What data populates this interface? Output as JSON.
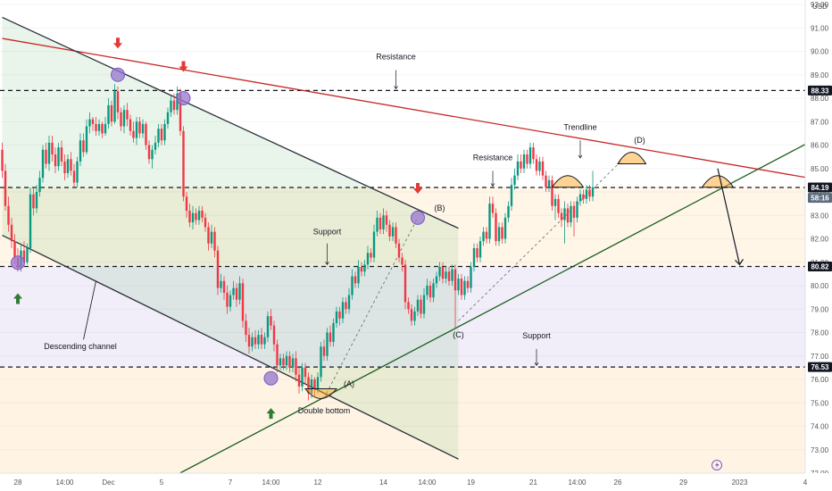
{
  "chart_data": {
    "type": "candlestick",
    "currency": "USD",
    "y_axis": {
      "min": 72.0,
      "max": 92.0,
      "ticks": [
        "92.00",
        "91.00",
        "90.00",
        "89.00",
        "88.00",
        "87.00",
        "86.00",
        "85.00",
        "84.00",
        "83.00",
        "82.00",
        "81.00",
        "80.00",
        "79.00",
        "78.00",
        "77.00",
        "76.00",
        "75.00",
        "74.00",
        "73.00",
        "72.00"
      ]
    },
    "x_axis": {
      "labels": [
        {
          "text": "28",
          "t": 5
        },
        {
          "text": "14:00",
          "t": 20
        },
        {
          "text": "Dec",
          "t": 34
        },
        {
          "text": "5",
          "t": 51
        },
        {
          "text": "7",
          "t": 73
        },
        {
          "text": "14:00",
          "t": 86
        },
        {
          "text": "12",
          "t": 101
        },
        {
          "text": "14",
          "t": 122
        },
        {
          "text": "14:00",
          "t": 136
        },
        {
          "text": "19",
          "t": 150
        },
        {
          "text": "21",
          "t": 170
        },
        {
          "text": "14:00",
          "t": 184
        },
        {
          "text": "26",
          "t": 197
        },
        {
          "text": "29",
          "t": 218
        },
        {
          "text": "2023",
          "t": 236
        },
        {
          "text": "4",
          "t": 257
        }
      ]
    },
    "price_tags": [
      {
        "text": "88.33",
        "value": 88.33,
        "color": "#131722"
      },
      {
        "text": "84.19",
        "value": 84.19,
        "color": "#131722"
      },
      {
        "text": "58:16",
        "value": 83.75,
        "color": "#5d6b7e"
      },
      {
        "text": "80.82",
        "value": 80.82,
        "color": "#131722"
      },
      {
        "text": "76.53",
        "value": 76.53,
        "color": "#131722"
      }
    ],
    "levels": [
      {
        "name": "Resistance",
        "value": 88.33
      },
      {
        "name": "Resistance",
        "value": 84.19
      },
      {
        "name": "Support",
        "value": 80.82
      },
      {
        "name": "Support",
        "value": 76.53
      }
    ],
    "lines": [
      {
        "name": "Trendline",
        "from": [
          0,
          90.55
        ],
        "to": [
          258,
          84.6
        ],
        "color": "#c62828"
      },
      {
        "name": "channel-upper",
        "from": [
          0,
          91.45
        ],
        "to": [
          146,
          82.45
        ],
        "color": "#2a2e39"
      },
      {
        "name": "channel-lower",
        "from": [
          0,
          82.15
        ],
        "to": [
          146,
          72.6
        ],
        "color": "#2a2e39"
      },
      {
        "name": "rising-support",
        "from": [
          54,
          71.8
        ],
        "to": [
          258,
          86.1
        ],
        "color": "#1b5e20"
      }
    ],
    "annotations": [
      {
        "text": "Resistance",
        "t": 126,
        "v": 89.65
      },
      {
        "text": "Trendline",
        "t": 185,
        "v": 86.65
      },
      {
        "text": "Resistance",
        "t": 157,
        "v": 85.35
      },
      {
        "text": "Support",
        "t": 104,
        "v": 82.2
      },
      {
        "text": "Support",
        "t": 171,
        "v": 77.75
      },
      {
        "text": "Descending channel",
        "t": 25,
        "v": 77.3
      },
      {
        "text": "Double bottom",
        "t": 103,
        "v": 74.55
      },
      {
        "text": "(A)",
        "t": 111,
        "v": 75.7
      },
      {
        "text": "(B)",
        "t": 140,
        "v": 83.2
      },
      {
        "text": "(C)",
        "t": 146,
        "v": 77.8
      },
      {
        "text": "(D)",
        "t": 204,
        "v": 86.1
      }
    ],
    "candles": [
      [
        85.8,
        84.9,
        86.1,
        84.6
      ],
      [
        84.9,
        83.4,
        85.2,
        83.2
      ],
      [
        83.4,
        82.6,
        83.8,
        82.3
      ],
      [
        82.6,
        81.9,
        82.9,
        81.6
      ],
      [
        81.9,
        81.2,
        82.2,
        80.9
      ],
      [
        81.2,
        80.8,
        81.6,
        80.6
      ],
      [
        80.8,
        81.5,
        81.8,
        80.6
      ],
      [
        81.5,
        81.0,
        81.9,
        80.8
      ],
      [
        81.0,
        81.6,
        81.8,
        80.9
      ],
      [
        81.6,
        83.9,
        84.2,
        81.4
      ],
      [
        83.9,
        83.3,
        84.2,
        83.0
      ],
      [
        83.3,
        84.0,
        84.3,
        83.1
      ],
      [
        84.0,
        84.6,
        84.9,
        83.8
      ],
      [
        84.6,
        85.8,
        86.0,
        84.4
      ],
      [
        85.8,
        85.2,
        86.1,
        85.0
      ],
      [
        85.2,
        86.1,
        86.4,
        84.9
      ],
      [
        86.1,
        85.6,
        86.4,
        85.3
      ],
      [
        85.6,
        85.1,
        85.9,
        84.8
      ],
      [
        85.1,
        85.9,
        86.1,
        84.9
      ],
      [
        85.9,
        85.3,
        86.2,
        85.1
      ],
      [
        85.3,
        84.8,
        85.6,
        84.5
      ],
      [
        84.8,
        85.4,
        85.6,
        84.6
      ],
      [
        85.4,
        84.9,
        85.7,
        84.7
      ],
      [
        84.9,
        84.4,
        85.2,
        84.2
      ],
      [
        84.4,
        85.3,
        85.5,
        84.2
      ],
      [
        85.3,
        86.2,
        86.5,
        85.1
      ],
      [
        86.2,
        85.7,
        86.5,
        85.5
      ],
      [
        85.7,
        86.8,
        87.1,
        85.6
      ],
      [
        86.8,
        87.1,
        87.4,
        86.5
      ],
      [
        87.1,
        86.9,
        87.2,
        86.6
      ],
      [
        86.9,
        86.6,
        87.2,
        86.4
      ],
      [
        86.6,
        86.9,
        87.1,
        86.4
      ],
      [
        86.9,
        86.5,
        87.0,
        86.3
      ],
      [
        86.5,
        86.9,
        87.2,
        86.4
      ],
      [
        86.9,
        87.7,
        88.0,
        86.7
      ],
      [
        87.7,
        87.0,
        87.9,
        86.8
      ],
      [
        87.0,
        88.3,
        88.6,
        86.9
      ],
      [
        88.3,
        87.4,
        88.5,
        87.1
      ],
      [
        87.4,
        86.8,
        87.6,
        86.6
      ],
      [
        86.8,
        87.5,
        87.7,
        86.5
      ],
      [
        87.5,
        87.1,
        87.8,
        86.8
      ],
      [
        87.1,
        86.6,
        87.3,
        86.4
      ],
      [
        86.6,
        86.3,
        87.0,
        86.1
      ],
      [
        86.3,
        87.0,
        87.2,
        86.0
      ],
      [
        87.0,
        86.5,
        87.2,
        86.3
      ],
      [
        86.5,
        86.9,
        87.1,
        86.3
      ],
      [
        86.9,
        86.0,
        87.0,
        85.8
      ],
      [
        86.0,
        85.4,
        86.2,
        85.2
      ],
      [
        85.4,
        85.8,
        86.0,
        85.0
      ],
      [
        85.8,
        86.1,
        86.4,
        85.6
      ],
      [
        86.1,
        86.7,
        86.9,
        85.9
      ],
      [
        86.7,
        86.2,
        86.9,
        86.0
      ],
      [
        86.2,
        86.9,
        87.1,
        86.0
      ],
      [
        86.9,
        87.4,
        87.6,
        86.7
      ],
      [
        87.4,
        87.9,
        88.1,
        87.2
      ],
      [
        87.9,
        87.5,
        88.2,
        87.3
      ],
      [
        87.5,
        88.2,
        88.5,
        87.3
      ],
      [
        88.2,
        86.6,
        88.4,
        86.4
      ],
      [
        86.6,
        83.8,
        86.8,
        83.6
      ],
      [
        83.8,
        83.2,
        84.0,
        82.9
      ],
      [
        83.2,
        82.7,
        83.5,
        82.5
      ],
      [
        82.7,
        83.1,
        83.4,
        82.4
      ],
      [
        83.1,
        82.8,
        83.3,
        82.6
      ],
      [
        82.8,
        83.2,
        83.4,
        82.6
      ],
      [
        83.2,
        82.9,
        83.4,
        82.7
      ],
      [
        82.9,
        82.5,
        83.1,
        82.3
      ],
      [
        82.5,
        81.8,
        82.7,
        81.5
      ],
      [
        81.8,
        82.3,
        82.6,
        81.6
      ],
      [
        82.3,
        81.5,
        82.5,
        81.2
      ],
      [
        81.5,
        79.9,
        81.7,
        79.6
      ],
      [
        79.9,
        80.2,
        80.5,
        79.7
      ],
      [
        80.2,
        79.7,
        80.4,
        79.4
      ],
      [
        79.7,
        79.1,
        80.0,
        78.8
      ],
      [
        79.1,
        79.6,
        79.8,
        78.9
      ],
      [
        79.6,
        79.9,
        80.2,
        79.4
      ],
      [
        79.9,
        79.4,
        80.1,
        79.1
      ],
      [
        79.4,
        80.1,
        80.4,
        79.2
      ],
      [
        80.1,
        78.5,
        80.3,
        78.2
      ],
      [
        78.5,
        77.9,
        78.8,
        77.6
      ],
      [
        77.9,
        77.4,
        78.2,
        77.1
      ],
      [
        77.4,
        77.8,
        78.0,
        77.2
      ],
      [
        77.8,
        77.5,
        78.1,
        77.3
      ],
      [
        77.5,
        77.9,
        78.1,
        77.3
      ],
      [
        77.9,
        77.5,
        78.2,
        77.3
      ],
      [
        77.5,
        77.8,
        78.0,
        77.3
      ],
      [
        77.8,
        78.7,
        78.9,
        77.6
      ],
      [
        78.7,
        78.3,
        79.0,
        78.1
      ],
      [
        78.3,
        77.5,
        78.5,
        77.2
      ],
      [
        77.5,
        76.6,
        77.7,
        76.3
      ],
      [
        76.6,
        76.9,
        77.1,
        76.4
      ],
      [
        76.9,
        76.6,
        77.1,
        76.4
      ],
      [
        76.6,
        77.0,
        77.2,
        76.4
      ],
      [
        77.0,
        76.5,
        77.2,
        76.3
      ],
      [
        76.5,
        76.9,
        77.1,
        76.3
      ],
      [
        76.9,
        76.2,
        77.2,
        75.9
      ],
      [
        76.2,
        75.7,
        76.5,
        75.4
      ],
      [
        75.7,
        76.5,
        76.7,
        75.5
      ],
      [
        76.5,
        76.1,
        76.7,
        75.8
      ],
      [
        76.1,
        75.4,
        76.3,
        75.1
      ],
      [
        75.4,
        76.0,
        76.2,
        75.2
      ],
      [
        76.0,
        75.6,
        76.1,
        75.3
      ],
      [
        75.6,
        76.1,
        76.3,
        75.4
      ],
      [
        76.1,
        77.4,
        77.6,
        75.9
      ],
      [
        77.4,
        77.0,
        77.7,
        76.8
      ],
      [
        77.0,
        78.0,
        78.2,
        76.8
      ],
      [
        78.0,
        77.6,
        78.3,
        77.4
      ],
      [
        77.6,
        78.4,
        78.6,
        77.4
      ],
      [
        78.4,
        78.9,
        79.1,
        78.2
      ],
      [
        78.9,
        78.6,
        79.1,
        78.3
      ],
      [
        78.6,
        79.3,
        79.5,
        78.4
      ],
      [
        79.3,
        79.0,
        79.5,
        78.8
      ],
      [
        79.0,
        79.6,
        79.9,
        78.8
      ],
      [
        79.6,
        80.4,
        80.7,
        79.4
      ],
      [
        80.4,
        80.1,
        80.6,
        79.9
      ],
      [
        80.1,
        80.8,
        81.1,
        79.9
      ],
      [
        80.8,
        80.6,
        81.0,
        80.4
      ],
      [
        80.6,
        80.9,
        81.1,
        80.4
      ],
      [
        80.9,
        81.4,
        81.7,
        80.7
      ],
      [
        81.4,
        81.2,
        81.6,
        81.0
      ],
      [
        81.2,
        82.3,
        82.6,
        81.0
      ],
      [
        82.3,
        82.9,
        83.2,
        82.1
      ],
      [
        82.9,
        82.4,
        83.1,
        82.2
      ],
      [
        82.4,
        83.0,
        83.3,
        82.2
      ],
      [
        83.0,
        82.6,
        83.2,
        82.3
      ],
      [
        82.6,
        82.1,
        82.8,
        81.9
      ],
      [
        82.1,
        82.5,
        82.7,
        81.9
      ],
      [
        82.5,
        81.8,
        82.7,
        81.6
      ],
      [
        81.8,
        81.2,
        82.0,
        81.0
      ],
      [
        81.2,
        80.9,
        81.4,
        80.6
      ],
      [
        80.9,
        79.3,
        81.1,
        79.0
      ],
      [
        79.3,
        79.0,
        79.5,
        78.8
      ],
      [
        79.0,
        78.5,
        79.2,
        78.3
      ],
      [
        78.5,
        78.9,
        79.1,
        78.3
      ],
      [
        78.9,
        79.4,
        79.6,
        78.7
      ],
      [
        79.4,
        78.8,
        79.6,
        78.6
      ],
      [
        78.8,
        79.6,
        79.9,
        78.6
      ],
      [
        79.6,
        80.0,
        80.3,
        79.4
      ],
      [
        80.0,
        79.5,
        80.2,
        79.3
      ],
      [
        79.5,
        80.1,
        80.3,
        79.3
      ],
      [
        80.1,
        80.4,
        80.6,
        79.9
      ],
      [
        80.4,
        80.8,
        81.0,
        80.2
      ],
      [
        80.8,
        80.3,
        81.0,
        80.1
      ],
      [
        80.3,
        80.6,
        80.8,
        80.1
      ],
      [
        80.6,
        80.2,
        80.8,
        80.0
      ],
      [
        80.2,
        80.7,
        80.9,
        80.0
      ],
      [
        80.7,
        79.8,
        80.9,
        78.2
      ],
      [
        79.8,
        80.3,
        80.5,
        79.6
      ],
      [
        80.3,
        79.6,
        80.5,
        79.4
      ],
      [
        79.6,
        80.2,
        80.4,
        79.4
      ],
      [
        80.2,
        79.9,
        80.4,
        79.7
      ],
      [
        79.9,
        80.8,
        81.0,
        79.7
      ],
      [
        80.8,
        81.6,
        81.8,
        80.6
      ],
      [
        81.6,
        81.2,
        81.8,
        81.0
      ],
      [
        81.2,
        81.9,
        82.1,
        81.0
      ],
      [
        81.9,
        82.3,
        82.5,
        81.7
      ],
      [
        82.3,
        82.0,
        82.5,
        81.8
      ],
      [
        82.0,
        83.5,
        83.8,
        81.8
      ],
      [
        83.5,
        83.1,
        83.8,
        82.9
      ],
      [
        83.1,
        81.9,
        83.3,
        81.7
      ],
      [
        81.9,
        82.5,
        82.7,
        81.7
      ],
      [
        82.5,
        82.0,
        82.7,
        81.8
      ],
      [
        82.0,
        82.9,
        83.1,
        81.8
      ],
      [
        82.9,
        83.4,
        83.6,
        82.7
      ],
      [
        83.4,
        84.3,
        84.6,
        83.2
      ],
      [
        84.3,
        84.7,
        85.0,
        84.1
      ],
      [
        84.7,
        85.3,
        85.6,
        84.5
      ],
      [
        85.3,
        85.0,
        85.6,
        84.8
      ],
      [
        85.0,
        85.6,
        85.8,
        84.8
      ],
      [
        85.6,
        85.2,
        85.8,
        85.0
      ],
      [
        85.2,
        85.9,
        86.1,
        85.0
      ],
      [
        85.9,
        85.4,
        86.1,
        85.2
      ],
      [
        85.4,
        84.9,
        85.6,
        84.7
      ],
      [
        84.9,
        85.3,
        85.5,
        84.7
      ],
      [
        85.3,
        84.7,
        85.5,
        84.5
      ],
      [
        84.7,
        84.2,
        84.9,
        84.0
      ],
      [
        84.2,
        84.5,
        84.7,
        84.0
      ],
      [
        84.5,
        83.4,
        84.7,
        83.2
      ],
      [
        83.4,
        83.7,
        83.9,
        82.8
      ],
      [
        83.7,
        83.1,
        83.9,
        82.9
      ],
      [
        83.1,
        82.8,
        83.3,
        82.5
      ],
      [
        82.8,
        83.3,
        83.6,
        81.8
      ],
      [
        83.3,
        82.7,
        83.5,
        82.5
      ],
      [
        82.7,
        83.4,
        83.6,
        82.5
      ],
      [
        83.4,
        82.9,
        83.6,
        82.1
      ],
      [
        82.9,
        83.6,
        83.8,
        82.7
      ],
      [
        83.6,
        83.9,
        84.1,
        83.4
      ],
      [
        83.9,
        83.7,
        84.1,
        83.5
      ],
      [
        83.7,
        84.1,
        84.3,
        83.5
      ],
      [
        84.1,
        83.8,
        84.3,
        83.6
      ],
      [
        83.8,
        84.2,
        84.9,
        83.6
      ]
    ]
  }
}
